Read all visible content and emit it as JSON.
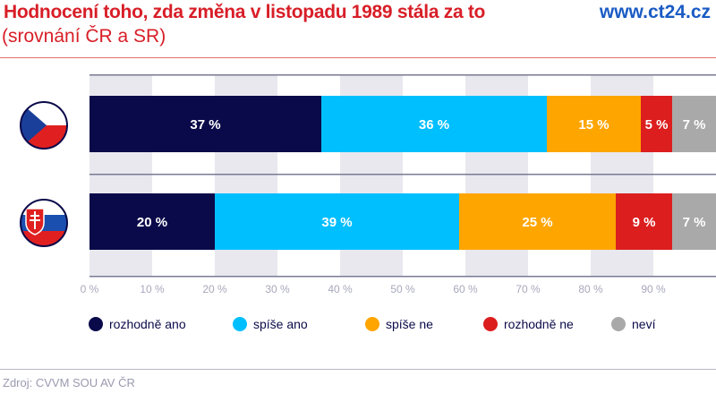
{
  "header": {
    "title": "Hodnocení toho, zda změna v listopadu 1989 stála za to",
    "subtitle": "(srovnání ČR a SR)",
    "brand": "www.ct24.cz"
  },
  "source": "Zdroj: CVVM SOU AV ČR",
  "chart_data": {
    "type": "bar",
    "orientation": "horizontal-stacked",
    "categories": [
      "ČR",
      "SR"
    ],
    "category_icons": [
      "czech-flag",
      "slovak-flag"
    ],
    "series": [
      {
        "name": "rozhodně ano",
        "color": "#0a0a4a",
        "values": [
          37,
          20
        ]
      },
      {
        "name": "spíše ano",
        "color": "#00bfff",
        "values": [
          36,
          39
        ]
      },
      {
        "name": "spíše ne",
        "color": "#ffa500",
        "values": [
          15,
          25
        ]
      },
      {
        "name": "rozhodně ne",
        "color": "#dc1e1e",
        "values": [
          5,
          9
        ]
      },
      {
        "name": "neví",
        "color": "#a9a9a9",
        "values": [
          7,
          7
        ]
      }
    ],
    "data_labels": [
      [
        "37 %",
        "36 %",
        "15 %",
        "5 %",
        "7 %"
      ],
      [
        "20 %",
        "39 %",
        "25 %",
        "9 %",
        "7 %"
      ]
    ],
    "xlim": [
      0,
      100
    ],
    "x_ticks": [
      "0 %",
      "10 %",
      "20 %",
      "30 %",
      "40 %",
      "50 %",
      "60 %",
      "70 %",
      "80 %",
      "90 %"
    ],
    "grid": true,
    "legend": "bottom"
  }
}
